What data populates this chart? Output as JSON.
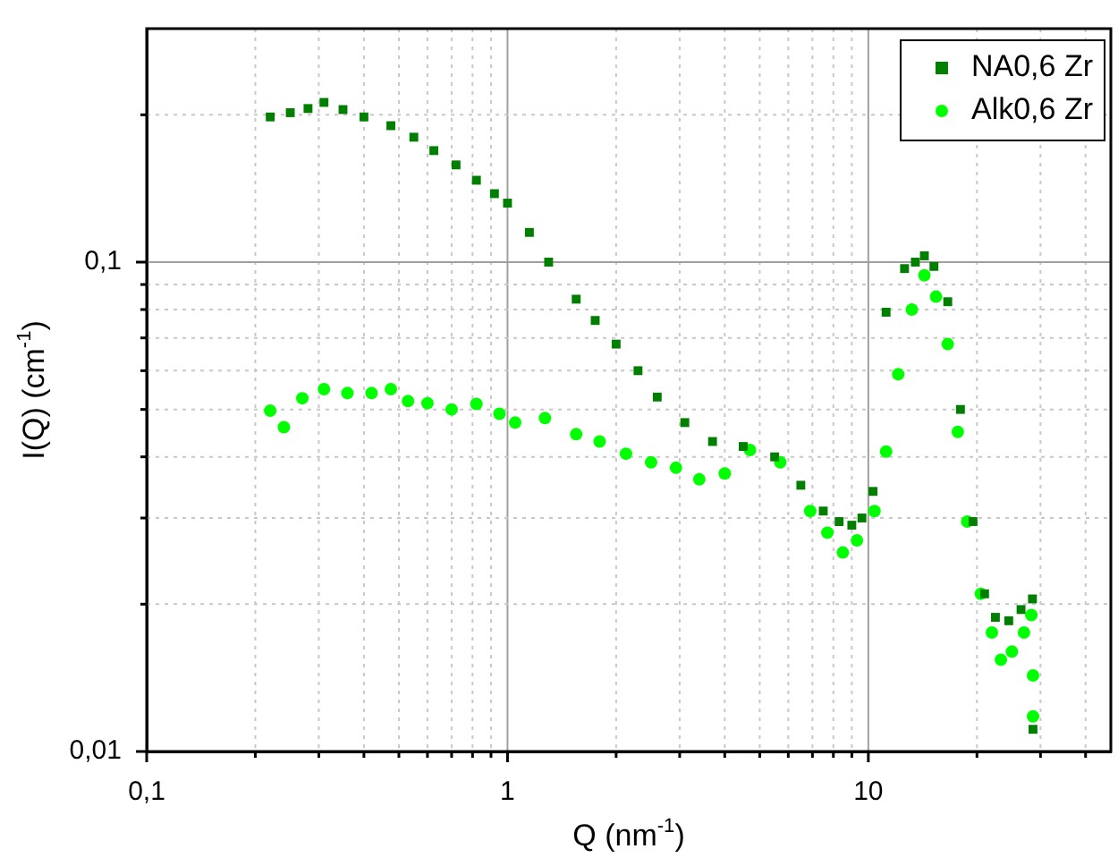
{
  "chart_data": {
    "type": "scatter",
    "xlabel": "Q (nm$^{-1}$)",
    "ylabel": "I(Q) (cm$^{-1}$)",
    "log": "xy",
    "grid": true,
    "legend": "top right",
    "xlim": [
      0.1,
      47
    ],
    "ylim": [
      0.01,
      0.3
    ],
    "xticks": [
      {
        "value": 0.1,
        "label": "0,1"
      },
      {
        "value": 0.2,
        "label": null
      },
      {
        "value": 0.3,
        "label": null
      },
      {
        "value": 0.4,
        "label": null
      },
      {
        "value": 0.5,
        "label": null
      },
      {
        "value": 0.6,
        "label": null
      },
      {
        "value": 0.7,
        "label": null
      },
      {
        "value": 0.8,
        "label": null
      },
      {
        "value": 0.9,
        "label": null
      },
      1,
      {
        "value": 2,
        "label": null
      },
      {
        "value": 3,
        "label": null
      },
      {
        "value": 4,
        "label": null
      },
      {
        "value": 5,
        "label": null
      },
      {
        "value": 6,
        "label": null
      },
      {
        "value": 7,
        "label": null
      },
      {
        "value": 8,
        "label": null
      },
      {
        "value": 9,
        "label": null
      },
      10,
      {
        "value": 20,
        "label": null
      },
      {
        "value": 30,
        "label": null
      },
      {
        "value": 40,
        "label": null
      }
    ],
    "yticks": [
      {
        "value": 0.01,
        "label": "0,01"
      },
      {
        "value": 0.02,
        "label": null
      },
      {
        "value": 0.03,
        "label": null
      },
      {
        "value": 0.04,
        "label": null
      },
      {
        "value": 0.05,
        "label": null
      },
      {
        "value": 0.06,
        "label": null
      },
      {
        "value": 0.07,
        "label": null
      },
      {
        "value": 0.08,
        "label": null
      },
      {
        "value": 0.09,
        "label": null
      },
      {
        "value": 0.1,
        "label": "0,1"
      },
      {
        "value": 0.2,
        "label": null
      }
    ],
    "series": [
      {
        "name": "NA0,6 Zr",
        "color": "#007f00",
        "marker": "square",
        "x": [
          0.22,
          0.25,
          0.28,
          0.31,
          0.35,
          0.4,
          0.475,
          0.55,
          0.625,
          0.72,
          0.82,
          0.92,
          1.0,
          1.15,
          1.3,
          1.55,
          1.75,
          2.0,
          2.3,
          2.6,
          3.1,
          3.7,
          4.5,
          5.5,
          6.5,
          7.5,
          8.3,
          9.0,
          9.6,
          10.3,
          11.2,
          12.6,
          13.5,
          14.3,
          15.2,
          16.6,
          18.0,
          19.5,
          21.0,
          22.5,
          24.5,
          26.5,
          28.5,
          28.6
        ],
        "values": [
          0.198,
          0.202,
          0.206,
          0.212,
          0.205,
          0.198,
          0.19,
          0.18,
          0.169,
          0.158,
          0.147,
          0.138,
          0.132,
          0.115,
          0.1,
          0.084,
          0.076,
          0.068,
          0.06,
          0.053,
          0.047,
          0.043,
          0.042,
          0.04,
          0.035,
          0.031,
          0.0295,
          0.029,
          0.03,
          0.034,
          0.079,
          0.097,
          0.1,
          0.103,
          0.098,
          0.083,
          0.05,
          0.0295,
          0.021,
          0.0188,
          0.0185,
          0.0195,
          0.0205,
          0.0111
        ]
      },
      {
        "name": "Alk0,6 Zr",
        "color": "#00ff00",
        "marker": "circle",
        "x": [
          0.22,
          0.24,
          0.27,
          0.31,
          0.36,
          0.42,
          0.475,
          0.53,
          0.6,
          0.7,
          0.82,
          0.95,
          1.05,
          1.27,
          1.55,
          1.8,
          2.13,
          2.5,
          2.93,
          3.4,
          4.0,
          4.7,
          5.7,
          6.9,
          7.7,
          8.5,
          9.3,
          10.4,
          11.2,
          12.1,
          13.2,
          14.3,
          15.4,
          16.6,
          17.7,
          18.8,
          20.5,
          22.0,
          23.3,
          25.0,
          27.0,
          28.3,
          28.6,
          28.6
        ],
        "values": [
          0.0497,
          0.046,
          0.0527,
          0.055,
          0.054,
          0.054,
          0.055,
          0.052,
          0.0515,
          0.05,
          0.0513,
          0.049,
          0.047,
          0.048,
          0.0445,
          0.043,
          0.0406,
          0.039,
          0.038,
          0.036,
          0.037,
          0.0413,
          0.039,
          0.031,
          0.028,
          0.0255,
          0.027,
          0.031,
          0.041,
          0.059,
          0.08,
          0.094,
          0.085,
          0.068,
          0.045,
          0.0295,
          0.021,
          0.0175,
          0.0154,
          0.016,
          0.0175,
          0.019,
          0.0143,
          0.0118
        ]
      }
    ]
  }
}
